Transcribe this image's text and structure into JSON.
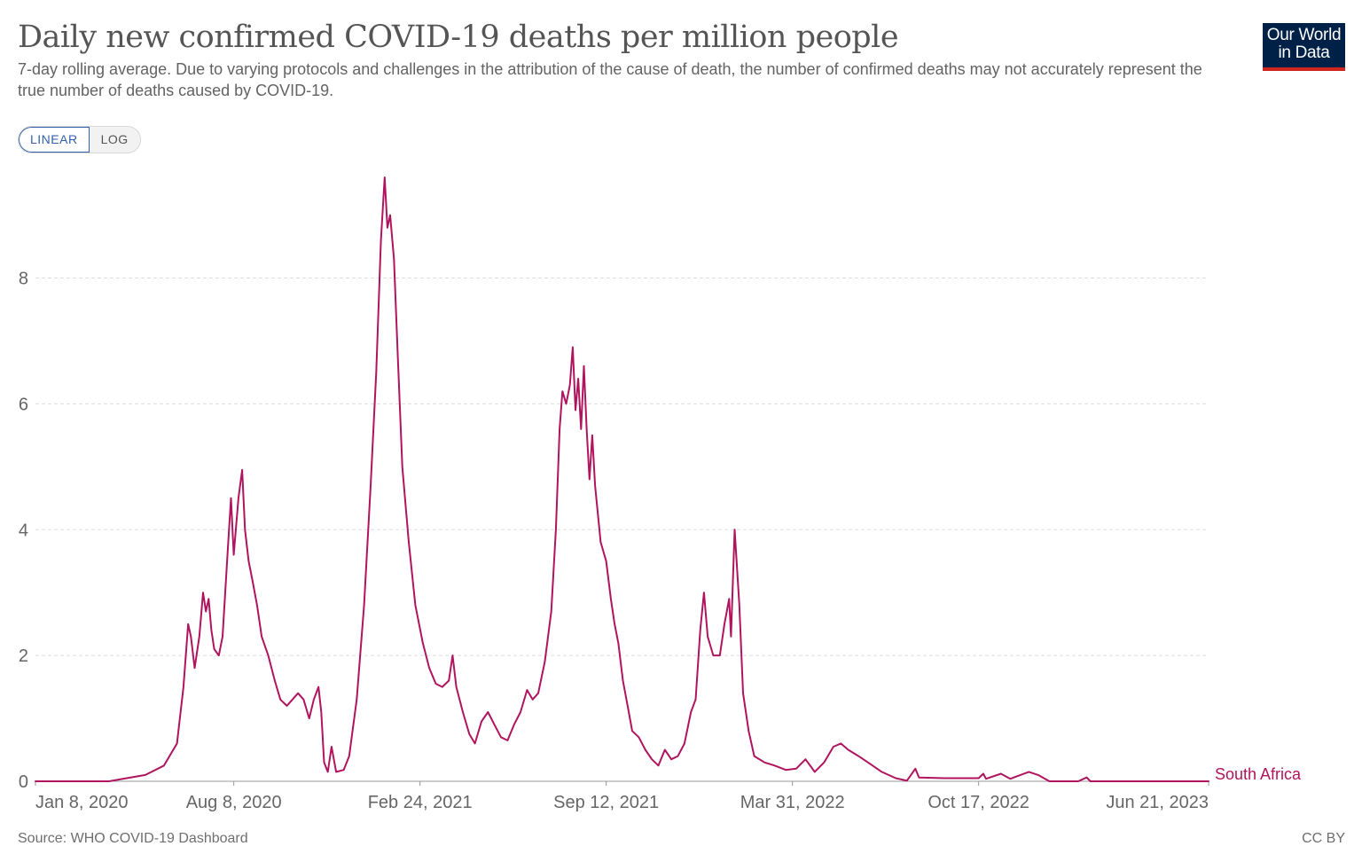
{
  "header": {
    "title": "Daily new confirmed COVID-19 deaths per million people",
    "subtitle": "7-day rolling average. Due to varying protocols and challenges in the attribution of the cause of death, the number of confirmed deaths may not accurately represent the true number of deaths caused by COVID-19."
  },
  "logo": {
    "line1": "Our World",
    "line2": "in Data"
  },
  "scale_toggle": {
    "linear": "LINEAR",
    "log": "LOG",
    "selected": "LINEAR"
  },
  "footer": {
    "source": "Source: WHO COVID-19 Dashboard",
    "license": "CC BY"
  },
  "colors": {
    "series": "#b0145e",
    "grid": "#dddddd",
    "logo_bg": "#002147",
    "logo_accent": "#ce261e",
    "toggle_active": "#3360a9"
  },
  "chart_data": {
    "type": "line",
    "title": "Daily new confirmed COVID-19 deaths per million people",
    "xlabel": "",
    "ylabel": "",
    "x_range": [
      "2020-01-08",
      "2023-06-21"
    ],
    "ylim": [
      0,
      9.6
    ],
    "y_ticks": [
      0,
      2,
      4,
      6,
      8
    ],
    "x_ticks": [
      {
        "date": "2020-01-08",
        "label": "Jan 8, 2020"
      },
      {
        "date": "2020-08-08",
        "label": "Aug 8, 2020"
      },
      {
        "date": "2021-02-24",
        "label": "Feb 24, 2021"
      },
      {
        "date": "2021-09-12",
        "label": "Sep 12, 2021"
      },
      {
        "date": "2022-03-31",
        "label": "Mar 31, 2022"
      },
      {
        "date": "2022-10-17",
        "label": "Oct 17, 2022"
      },
      {
        "date": "2023-06-21",
        "label": "Jun 21, 2023"
      }
    ],
    "grid": "horizontal dashed",
    "series": [
      {
        "name": "South Africa",
        "color": "#b0145e",
        "points": [
          [
            "2020-01-08",
            0
          ],
          [
            "2020-03-27",
            0
          ],
          [
            "2020-04-15",
            0.05
          ],
          [
            "2020-05-05",
            0.1
          ],
          [
            "2020-05-25",
            0.25
          ],
          [
            "2020-06-08",
            0.6
          ],
          [
            "2020-06-15",
            1.5
          ],
          [
            "2020-06-20",
            2.5
          ],
          [
            "2020-06-23",
            2.3
          ],
          [
            "2020-06-27",
            1.8
          ],
          [
            "2020-07-02",
            2.3
          ],
          [
            "2020-07-06",
            3.0
          ],
          [
            "2020-07-09",
            2.7
          ],
          [
            "2020-07-12",
            2.9
          ],
          [
            "2020-07-15",
            2.4
          ],
          [
            "2020-07-18",
            2.1
          ],
          [
            "2020-07-23",
            2.0
          ],
          [
            "2020-07-27",
            2.3
          ],
          [
            "2020-08-02",
            3.8
          ],
          [
            "2020-08-05",
            4.5
          ],
          [
            "2020-08-08",
            3.6
          ],
          [
            "2020-08-13",
            4.5
          ],
          [
            "2020-08-17",
            4.95
          ],
          [
            "2020-08-20",
            4.0
          ],
          [
            "2020-08-24",
            3.5
          ],
          [
            "2020-08-28",
            3.2
          ],
          [
            "2020-09-02",
            2.8
          ],
          [
            "2020-09-07",
            2.3
          ],
          [
            "2020-09-14",
            2.0
          ],
          [
            "2020-09-21",
            1.6
          ],
          [
            "2020-09-27",
            1.3
          ],
          [
            "2020-10-04",
            1.2
          ],
          [
            "2020-10-10",
            1.3
          ],
          [
            "2020-10-16",
            1.4
          ],
          [
            "2020-10-22",
            1.3
          ],
          [
            "2020-10-28",
            1.0
          ],
          [
            "2020-11-02",
            1.3
          ],
          [
            "2020-11-07",
            1.5
          ],
          [
            "2020-11-10",
            1.1
          ],
          [
            "2020-11-13",
            0.3
          ],
          [
            "2020-11-17",
            0.15
          ],
          [
            "2020-11-21",
            0.55
          ],
          [
            "2020-11-26",
            0.15
          ],
          [
            "2020-12-04",
            0.18
          ],
          [
            "2020-12-10",
            0.4
          ],
          [
            "2020-12-18",
            1.3
          ],
          [
            "2020-12-26",
            2.8
          ],
          [
            "2021-01-02",
            4.7
          ],
          [
            "2021-01-08",
            6.5
          ],
          [
            "2021-01-13",
            8.6
          ],
          [
            "2021-01-17",
            9.6
          ],
          [
            "2021-01-20",
            8.8
          ],
          [
            "2021-01-23",
            9.0
          ],
          [
            "2021-01-27",
            8.3
          ],
          [
            "2021-01-31",
            6.8
          ],
          [
            "2021-02-05",
            5.0
          ],
          [
            "2021-02-12",
            3.8
          ],
          [
            "2021-02-19",
            2.8
          ],
          [
            "2021-02-27",
            2.2
          ],
          [
            "2021-03-06",
            1.8
          ],
          [
            "2021-03-13",
            1.55
          ],
          [
            "2021-03-20",
            1.5
          ],
          [
            "2021-03-27",
            1.6
          ],
          [
            "2021-03-31",
            2.0
          ],
          [
            "2021-04-04",
            1.5
          ],
          [
            "2021-04-11",
            1.1
          ],
          [
            "2021-04-18",
            0.75
          ],
          [
            "2021-04-24",
            0.6
          ],
          [
            "2021-05-01",
            0.95
          ],
          [
            "2021-05-08",
            1.1
          ],
          [
            "2021-05-15",
            0.9
          ],
          [
            "2021-05-22",
            0.7
          ],
          [
            "2021-05-29",
            0.65
          ],
          [
            "2021-06-05",
            0.9
          ],
          [
            "2021-06-12",
            1.1
          ],
          [
            "2021-06-19",
            1.45
          ],
          [
            "2021-06-25",
            1.3
          ],
          [
            "2021-07-01",
            1.4
          ],
          [
            "2021-07-08",
            1.9
          ],
          [
            "2021-07-15",
            2.7
          ],
          [
            "2021-07-20",
            4.0
          ],
          [
            "2021-07-24",
            5.6
          ],
          [
            "2021-07-27",
            6.2
          ],
          [
            "2021-07-31",
            6.0
          ],
          [
            "2021-08-04",
            6.3
          ],
          [
            "2021-08-07",
            6.9
          ],
          [
            "2021-08-10",
            5.9
          ],
          [
            "2021-08-13",
            6.4
          ],
          [
            "2021-08-16",
            5.6
          ],
          [
            "2021-08-19",
            6.6
          ],
          [
            "2021-08-22",
            5.6
          ],
          [
            "2021-08-25",
            4.8
          ],
          [
            "2021-08-28",
            5.5
          ],
          [
            "2021-08-31",
            4.7
          ],
          [
            "2021-09-06",
            3.8
          ],
          [
            "2021-09-12",
            3.5
          ],
          [
            "2021-09-17",
            2.9
          ],
          [
            "2021-09-21",
            2.5
          ],
          [
            "2021-09-25",
            2.2
          ],
          [
            "2021-09-30",
            1.6
          ],
          [
            "2021-10-05",
            1.2
          ],
          [
            "2021-10-10",
            0.8
          ],
          [
            "2021-10-17",
            0.7
          ],
          [
            "2021-10-24",
            0.5
          ],
          [
            "2021-10-31",
            0.35
          ],
          [
            "2021-11-07",
            0.25
          ],
          [
            "2021-11-14",
            0.5
          ],
          [
            "2021-11-21",
            0.35
          ],
          [
            "2021-11-28",
            0.4
          ],
          [
            "2021-12-05",
            0.6
          ],
          [
            "2021-12-12",
            1.1
          ],
          [
            "2021-12-17",
            1.3
          ],
          [
            "2021-12-22",
            2.4
          ],
          [
            "2021-12-26",
            3.0
          ],
          [
            "2021-12-30",
            2.3
          ],
          [
            "2022-01-05",
            2.0
          ],
          [
            "2022-01-12",
            2.0
          ],
          [
            "2022-01-17",
            2.5
          ],
          [
            "2022-01-22",
            2.9
          ],
          [
            "2022-01-24",
            2.3
          ],
          [
            "2022-01-28",
            4.0
          ],
          [
            "2022-02-02",
            2.8
          ],
          [
            "2022-02-06",
            1.4
          ],
          [
            "2022-02-12",
            0.8
          ],
          [
            "2022-02-18",
            0.4
          ],
          [
            "2022-03-01",
            0.3
          ],
          [
            "2022-03-12",
            0.25
          ],
          [
            "2022-03-24",
            0.18
          ],
          [
            "2022-04-04",
            0.2
          ],
          [
            "2022-04-14",
            0.35
          ],
          [
            "2022-04-24",
            0.15
          ],
          [
            "2022-05-04",
            0.3
          ],
          [
            "2022-05-14",
            0.55
          ],
          [
            "2022-05-22",
            0.6
          ],
          [
            "2022-05-30",
            0.5
          ],
          [
            "2022-06-10",
            0.4
          ],
          [
            "2022-06-22",
            0.28
          ],
          [
            "2022-07-05",
            0.15
          ],
          [
            "2022-07-20",
            0.05
          ],
          [
            "2022-08-01",
            0.01
          ],
          [
            "2022-08-10",
            0.2
          ],
          [
            "2022-08-14",
            0.06
          ],
          [
            "2022-09-10",
            0.05
          ],
          [
            "2022-10-17",
            0.05
          ],
          [
            "2022-10-22",
            0.12
          ],
          [
            "2022-10-25",
            0.04
          ],
          [
            "2022-11-10",
            0.12
          ],
          [
            "2022-11-20",
            0.04
          ],
          [
            "2022-12-10",
            0.15
          ],
          [
            "2022-12-20",
            0.1
          ],
          [
            "2023-01-01",
            0.0
          ],
          [
            "2023-02-01",
            0.0
          ],
          [
            "2023-02-10",
            0.06
          ],
          [
            "2023-02-14",
            0.0
          ],
          [
            "2023-06-21",
            0.0
          ]
        ]
      }
    ],
    "legend": "end-of-line label"
  }
}
